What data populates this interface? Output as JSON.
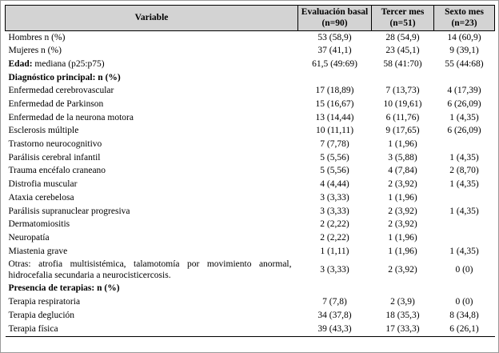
{
  "colors": {
    "header_bg": "#d3d3d3",
    "border": "#000000"
  },
  "table": {
    "columns": [
      {
        "label": "Variable"
      },
      {
        "label": "Evaluación basal (n=90)"
      },
      {
        "label": "Tercer mes (n=51)"
      },
      {
        "label": "Sexto mes (n=23)"
      }
    ],
    "rows": [
      {
        "type": "data",
        "label": "Hombres n (%)",
        "values": [
          "53 (58,9)",
          "28 (54,9)",
          "14 (60,9)"
        ]
      },
      {
        "type": "data",
        "label": "Mujeres n (%)",
        "values": [
          "37 (41,1)",
          "23 (45,1)",
          "9 (39,1)"
        ]
      },
      {
        "type": "data",
        "bold_prefix": "Edad:",
        "label": " mediana (p25:p75)",
        "values": [
          "61,5 (49:69)",
          "58 (41:70)",
          "55 (44:68)"
        ]
      },
      {
        "type": "section",
        "label": "Diagnóstico principal: n (%)",
        "values": [
          "",
          "",
          ""
        ]
      },
      {
        "type": "data",
        "label": "Enfermedad cerebrovascular",
        "values": [
          "17 (18,89)",
          "7 (13,73)",
          "4 (17,39)"
        ]
      },
      {
        "type": "data",
        "label": "Enfermedad de Parkinson",
        "values": [
          "15 (16,67)",
          "10 (19,61)",
          "6 (26,09)"
        ]
      },
      {
        "type": "data",
        "label": "Enfermedad de la neurona motora",
        "values": [
          "13 (14,44)",
          "6 (11,76)",
          "1 (4,35)"
        ]
      },
      {
        "type": "data",
        "label": "Esclerosis múltiple",
        "values": [
          "10 (11,11)",
          "9 (17,65)",
          "6 (26,09)"
        ]
      },
      {
        "type": "data",
        "label": "Trastorno neurocognitivo",
        "values": [
          "7 (7,78)",
          "1 (1,96)",
          ""
        ]
      },
      {
        "type": "data",
        "label": "Parálisis cerebral infantil",
        "values": [
          "5 (5,56)",
          "3 (5,88)",
          "1 (4,35)"
        ]
      },
      {
        "type": "data",
        "label": "Trauma encéfalo craneano",
        "values": [
          "5 (5,56)",
          "4 (7,84)",
          "2 (8,70)"
        ]
      },
      {
        "type": "data",
        "label": "Distrofia muscular",
        "values": [
          "4 (4,44)",
          "2 (3,92)",
          "1 (4,35)"
        ]
      },
      {
        "type": "data",
        "label": "Ataxia cerebelosa",
        "values": [
          "3 (3,33)",
          "1 (1,96)",
          ""
        ]
      },
      {
        "type": "data",
        "label": "Parálisis supranuclear progresiva",
        "values": [
          "3 (3,33)",
          "2 (3,92)",
          "1 (4,35)"
        ]
      },
      {
        "type": "data",
        "label": "Dermatomiositis",
        "values": [
          "2 (2,22)",
          "2 (3,92)",
          ""
        ]
      },
      {
        "type": "data",
        "label": "Neuropatía",
        "values": [
          "2 (2,22)",
          "1 (1,96)",
          ""
        ]
      },
      {
        "type": "data",
        "label": "Miastenia grave",
        "values": [
          "1 (1,11)",
          "1 (1,96)",
          "1 (4,35)"
        ]
      },
      {
        "type": "data",
        "justify": true,
        "label": "Otras: atrofia multisistémica, talamotomía por movimiento anormal, hidrocefalia secundaria a neurocisticercosis.",
        "values": [
          "3 (3,33)",
          "2 (3,92)",
          "0 (0)"
        ]
      },
      {
        "type": "section",
        "label": "Presencia de terapias: n (%)",
        "values": [
          "",
          "",
          ""
        ]
      },
      {
        "type": "data",
        "label": "Terapia respiratoria",
        "values": [
          "7 (7,8)",
          "2 (3,9)",
          "0 (0)"
        ]
      },
      {
        "type": "data",
        "label": "Terapia deglución",
        "values": [
          "34 (37,8)",
          "18 (35,3)",
          "8 (34,8)"
        ]
      },
      {
        "type": "data",
        "label": "Terapia física",
        "values": [
          "39 (43,3)",
          "17 (33,3)",
          "6 (26,1)"
        ]
      }
    ]
  }
}
